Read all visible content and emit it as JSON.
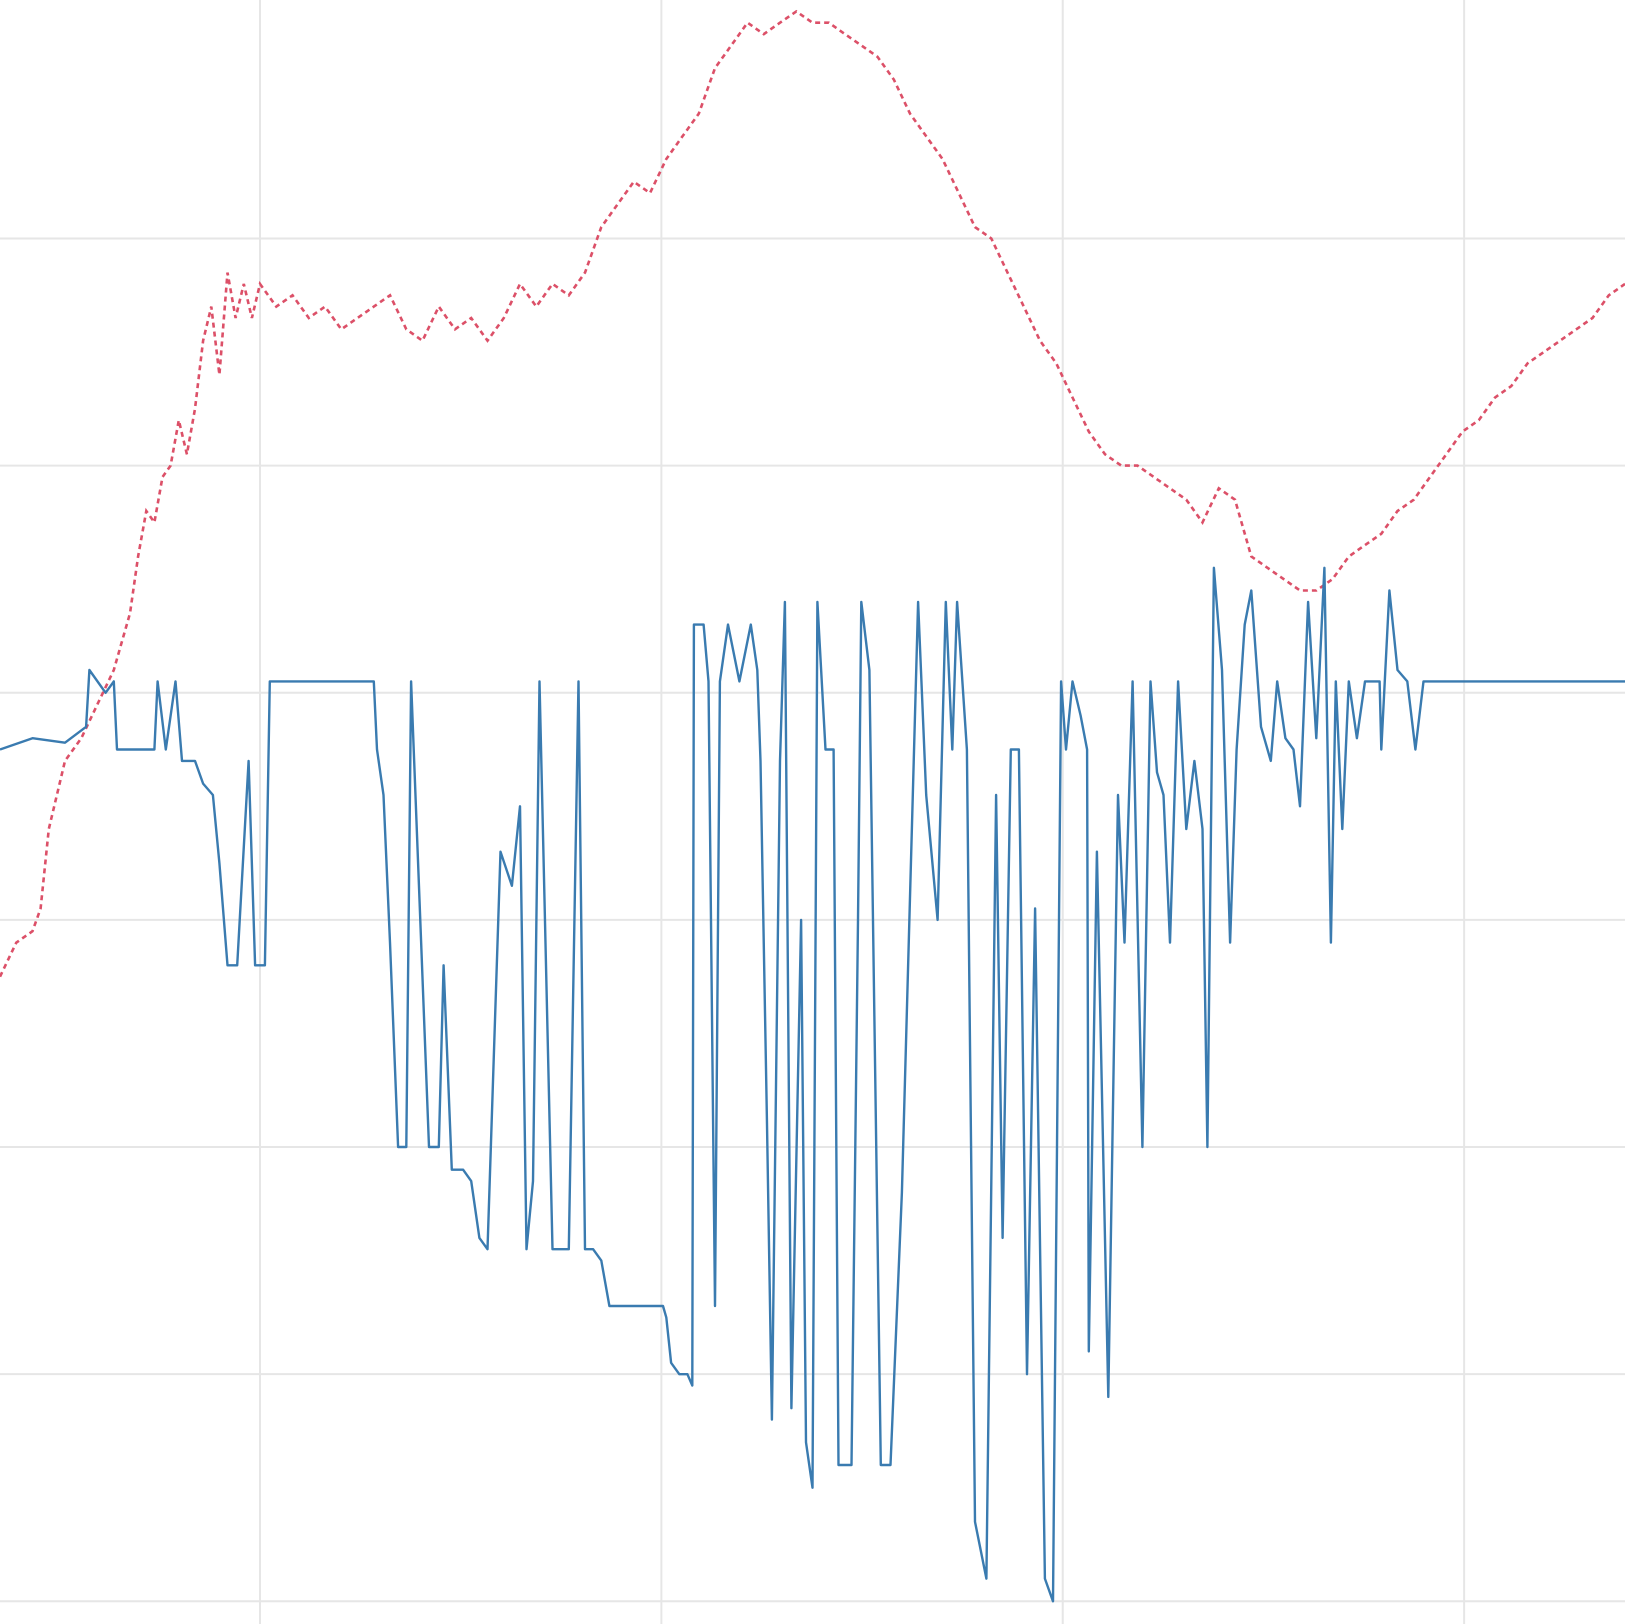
{
  "chart_data": {
    "type": "line",
    "title": "",
    "xlabel": "",
    "ylabel": "",
    "grid": true,
    "legend": "none",
    "x_tick_count": 4,
    "y_tick_count": 7,
    "x_domain": [
      0,
      100
    ],
    "y_domain": [
      -0.1,
      7.05
    ],
    "x_gridlines": [
      16,
      40.7,
      65.4,
      90.1
    ],
    "y_gridlines": [
      0,
      1,
      2,
      3,
      4,
      5,
      6
    ],
    "colors": {
      "blue_series": "#3a7bb0",
      "red_series": "#dc5068",
      "grid": "#e6e6e6"
    },
    "series": [
      {
        "style": "solid",
        "color": "#3a7bb0",
        "points": [
          [
            0,
            3.75
          ],
          [
            2,
            3.8
          ],
          [
            4,
            3.78
          ],
          [
            5.3,
            3.85
          ],
          [
            5.5,
            4.1
          ],
          [
            6.5,
            4.0
          ],
          [
            7,
            4.05
          ],
          [
            7.2,
            3.75
          ],
          [
            8,
            3.75
          ],
          [
            9.5,
            3.75
          ],
          [
            9.7,
            4.05
          ],
          [
            10.2,
            3.75
          ],
          [
            10.8,
            4.05
          ],
          [
            11.2,
            3.7
          ],
          [
            12,
            3.7
          ],
          [
            12.5,
            3.6
          ],
          [
            13.1,
            3.55
          ],
          [
            13.5,
            3.25
          ],
          [
            14,
            2.8
          ],
          [
            14.6,
            2.8
          ],
          [
            15.3,
            3.7
          ],
          [
            15.7,
            2.8
          ],
          [
            16.3,
            2.8
          ],
          [
            16.6,
            4.05
          ],
          [
            17,
            4.05
          ],
          [
            23,
            4.05
          ],
          [
            23.2,
            3.75
          ],
          [
            23.6,
            3.55
          ],
          [
            24,
            2.9
          ],
          [
            24.5,
            2.0
          ],
          [
            25,
            2.0
          ],
          [
            25.3,
            4.05
          ],
          [
            26.4,
            2.0
          ],
          [
            27,
            2.0
          ],
          [
            27.3,
            2.8
          ],
          [
            27.8,
            1.9
          ],
          [
            28.5,
            1.9
          ],
          [
            29,
            1.85
          ],
          [
            29.5,
            1.6
          ],
          [
            30,
            1.55
          ],
          [
            30.8,
            3.3
          ],
          [
            31.5,
            3.15
          ],
          [
            32,
            3.5
          ],
          [
            32.4,
            1.55
          ],
          [
            32.8,
            1.85
          ],
          [
            33.2,
            4.05
          ],
          [
            34,
            1.55
          ],
          [
            35,
            1.55
          ],
          [
            35.6,
            4.05
          ],
          [
            36,
            1.55
          ],
          [
            36.5,
            1.55
          ],
          [
            37,
            1.5
          ],
          [
            37.5,
            1.3
          ],
          [
            38,
            1.3
          ],
          [
            38.8,
            1.3
          ],
          [
            39.5,
            1.3
          ],
          [
            40.3,
            1.3
          ],
          [
            40.8,
            1.3
          ],
          [
            41,
            1.25
          ],
          [
            41.3,
            1.05
          ],
          [
            41.8,
            1.0
          ],
          [
            42.3,
            1.0
          ],
          [
            42.6,
            0.95
          ],
          [
            42.7,
            4.3
          ],
          [
            43.3,
            4.3
          ],
          [
            43.6,
            4.05
          ],
          [
            44,
            1.3
          ],
          [
            44.3,
            4.05
          ],
          [
            44.8,
            4.3
          ],
          [
            45.5,
            4.05
          ],
          [
            46.2,
            4.3
          ],
          [
            46.6,
            4.1
          ],
          [
            46.8,
            3.7
          ],
          [
            47.2,
            2.1
          ],
          [
            47.5,
            0.8
          ],
          [
            48,
            3.7
          ],
          [
            48.3,
            4.4
          ],
          [
            48.7,
            0.85
          ],
          [
            49.3,
            3.0
          ],
          [
            49.6,
            0.7
          ],
          [
            50,
            0.5
          ],
          [
            50.3,
            4.4
          ],
          [
            50.8,
            3.75
          ],
          [
            51.3,
            3.75
          ],
          [
            51.6,
            0.6
          ],
          [
            52.4,
            0.6
          ],
          [
            52.8,
            3.0
          ],
          [
            53,
            4.4
          ],
          [
            53.5,
            4.1
          ],
          [
            54.2,
            0.6
          ],
          [
            54.8,
            0.6
          ],
          [
            55.5,
            1.8
          ],
          [
            56.5,
            4.4
          ],
          [
            57,
            3.55
          ],
          [
            57.7,
            3.0
          ],
          [
            58.2,
            4.4
          ],
          [
            58.6,
            3.75
          ],
          [
            58.9,
            4.4
          ],
          [
            59.5,
            3.75
          ],
          [
            60,
            0.35
          ],
          [
            60.7,
            0.1
          ],
          [
            61.3,
            3.55
          ],
          [
            61.7,
            1.6
          ],
          [
            62.2,
            3.75
          ],
          [
            62.7,
            3.75
          ],
          [
            63.2,
            1.0
          ],
          [
            63.7,
            3.05
          ],
          [
            64.3,
            0.1
          ],
          [
            64.8,
            0.0
          ],
          [
            65.3,
            4.05
          ],
          [
            65.6,
            3.75
          ],
          [
            66,
            4.05
          ],
          [
            66.5,
            3.9
          ],
          [
            66.9,
            3.75
          ],
          [
            67,
            1.1
          ],
          [
            67.5,
            3.3
          ],
          [
            68.2,
            0.9
          ],
          [
            68.8,
            3.55
          ],
          [
            69.2,
            2.9
          ],
          [
            69.7,
            4.05
          ],
          [
            70.3,
            2.0
          ],
          [
            70.8,
            4.05
          ],
          [
            71.2,
            3.65
          ],
          [
            71.6,
            3.55
          ],
          [
            72,
            2.9
          ],
          [
            72.5,
            4.05
          ],
          [
            73,
            3.4
          ],
          [
            73.5,
            3.7
          ],
          [
            74,
            3.4
          ],
          [
            74.3,
            2.0
          ],
          [
            74.7,
            4.55
          ],
          [
            75.2,
            4.1
          ],
          [
            75.7,
            2.9
          ],
          [
            76.1,
            3.75
          ],
          [
            76.6,
            4.3
          ],
          [
            77,
            4.45
          ],
          [
            77.6,
            3.85
          ],
          [
            78.2,
            3.7
          ],
          [
            78.6,
            4.05
          ],
          [
            79.1,
            3.8
          ],
          [
            79.6,
            3.75
          ],
          [
            80,
            3.5
          ],
          [
            80.5,
            4.4
          ],
          [
            81,
            3.8
          ],
          [
            81.5,
            4.55
          ],
          [
            81.9,
            2.9
          ],
          [
            82.2,
            4.05
          ],
          [
            82.6,
            3.4
          ],
          [
            83,
            4.05
          ],
          [
            83.5,
            3.8
          ],
          [
            84,
            4.05
          ],
          [
            84.5,
            4.05
          ],
          [
            84.9,
            4.05
          ],
          [
            85,
            3.75
          ],
          [
            85.5,
            4.45
          ],
          [
            86,
            4.1
          ],
          [
            86.6,
            4.05
          ],
          [
            87.1,
            3.75
          ],
          [
            87.6,
            4.05
          ],
          [
            88.2,
            4.05
          ],
          [
            88.6,
            4.05
          ],
          [
            89,
            4.05
          ],
          [
            89.5,
            4.05
          ],
          [
            90,
            4.05
          ],
          [
            90.5,
            4.05
          ],
          [
            91,
            4.05
          ],
          [
            91.5,
            4.05
          ],
          [
            92,
            4.05
          ],
          [
            93,
            4.05
          ],
          [
            94,
            4.05
          ],
          [
            95,
            4.05
          ],
          [
            96,
            4.05
          ],
          [
            97,
            4.05
          ],
          [
            98,
            4.05
          ],
          [
            98.5,
            4.05
          ],
          [
            99,
            4.05
          ],
          [
            100,
            4.05
          ]
        ]
      },
      {
        "style": "dashed",
        "color": "#dc5068",
        "points": [
          [
            0,
            2.75
          ],
          [
            1,
            2.9
          ],
          [
            2,
            2.95
          ],
          [
            2.5,
            3.05
          ],
          [
            3,
            3.4
          ],
          [
            3.5,
            3.55
          ],
          [
            4,
            3.7
          ],
          [
            5,
            3.8
          ],
          [
            6,
            3.95
          ],
          [
            7,
            4.1
          ],
          [
            8,
            4.35
          ],
          [
            8.5,
            4.6
          ],
          [
            9,
            4.8
          ],
          [
            9.5,
            4.75
          ],
          [
            10,
            4.95
          ],
          [
            10.5,
            5.0
          ],
          [
            11,
            5.2
          ],
          [
            11.5,
            5.05
          ],
          [
            12,
            5.25
          ],
          [
            12.5,
            5.55
          ],
          [
            13,
            5.7
          ],
          [
            13.5,
            5.4
          ],
          [
            14,
            5.85
          ],
          [
            14.5,
            5.65
          ],
          [
            15,
            5.8
          ],
          [
            15.5,
            5.65
          ],
          [
            16,
            5.8
          ],
          [
            17,
            5.7
          ],
          [
            18,
            5.75
          ],
          [
            19,
            5.65
          ],
          [
            20,
            5.7
          ],
          [
            21,
            5.6
          ],
          [
            22,
            5.65
          ],
          [
            23,
            5.7
          ],
          [
            24,
            5.75
          ],
          [
            25,
            5.6
          ],
          [
            26,
            5.55
          ],
          [
            27,
            5.7
          ],
          [
            28,
            5.6
          ],
          [
            29,
            5.65
          ],
          [
            30,
            5.55
          ],
          [
            31,
            5.65
          ],
          [
            32,
            5.8
          ],
          [
            33,
            5.7
          ],
          [
            34,
            5.8
          ],
          [
            35,
            5.75
          ],
          [
            36,
            5.85
          ],
          [
            37,
            6.05
          ],
          [
            38,
            6.15
          ],
          [
            39,
            6.25
          ],
          [
            40,
            6.2
          ],
          [
            41,
            6.35
          ],
          [
            42,
            6.45
          ],
          [
            43,
            6.55
          ],
          [
            44,
            6.75
          ],
          [
            45,
            6.85
          ],
          [
            46,
            6.95
          ],
          [
            47,
            6.9
          ],
          [
            48,
            6.95
          ],
          [
            49,
            7.0
          ],
          [
            50,
            6.95
          ],
          [
            51,
            6.95
          ],
          [
            52,
            6.9
          ],
          [
            53,
            6.85
          ],
          [
            54,
            6.8
          ],
          [
            55,
            6.7
          ],
          [
            56,
            6.55
          ],
          [
            57,
            6.45
          ],
          [
            58,
            6.35
          ],
          [
            59,
            6.2
          ],
          [
            60,
            6.05
          ],
          [
            61,
            6.0
          ],
          [
            62,
            5.85
          ],
          [
            63,
            5.7
          ],
          [
            64,
            5.55
          ],
          [
            65,
            5.45
          ],
          [
            66,
            5.3
          ],
          [
            67,
            5.15
          ],
          [
            68,
            5.05
          ],
          [
            69,
            5.0
          ],
          [
            70,
            5.0
          ],
          [
            71,
            4.95
          ],
          [
            72,
            4.9
          ],
          [
            73,
            4.85
          ],
          [
            74,
            4.75
          ],
          [
            75,
            4.9
          ],
          [
            76,
            4.85
          ],
          [
            77,
            4.6
          ],
          [
            78,
            4.55
          ],
          [
            79,
            4.5
          ],
          [
            80,
            4.45
          ],
          [
            81,
            4.45
          ],
          [
            82,
            4.5
          ],
          [
            83,
            4.6
          ],
          [
            84,
            4.65
          ],
          [
            85,
            4.7
          ],
          [
            86,
            4.8
          ],
          [
            87,
            4.85
          ],
          [
            88,
            4.95
          ],
          [
            89,
            5.05
          ],
          [
            90,
            5.15
          ],
          [
            91,
            5.2
          ],
          [
            92,
            5.3
          ],
          [
            93,
            5.35
          ],
          [
            94,
            5.45
          ],
          [
            95,
            5.5
          ],
          [
            96,
            5.55
          ],
          [
            97,
            5.6
          ],
          [
            98,
            5.65
          ],
          [
            99,
            5.75
          ],
          [
            100,
            5.8
          ]
        ]
      }
    ]
  }
}
